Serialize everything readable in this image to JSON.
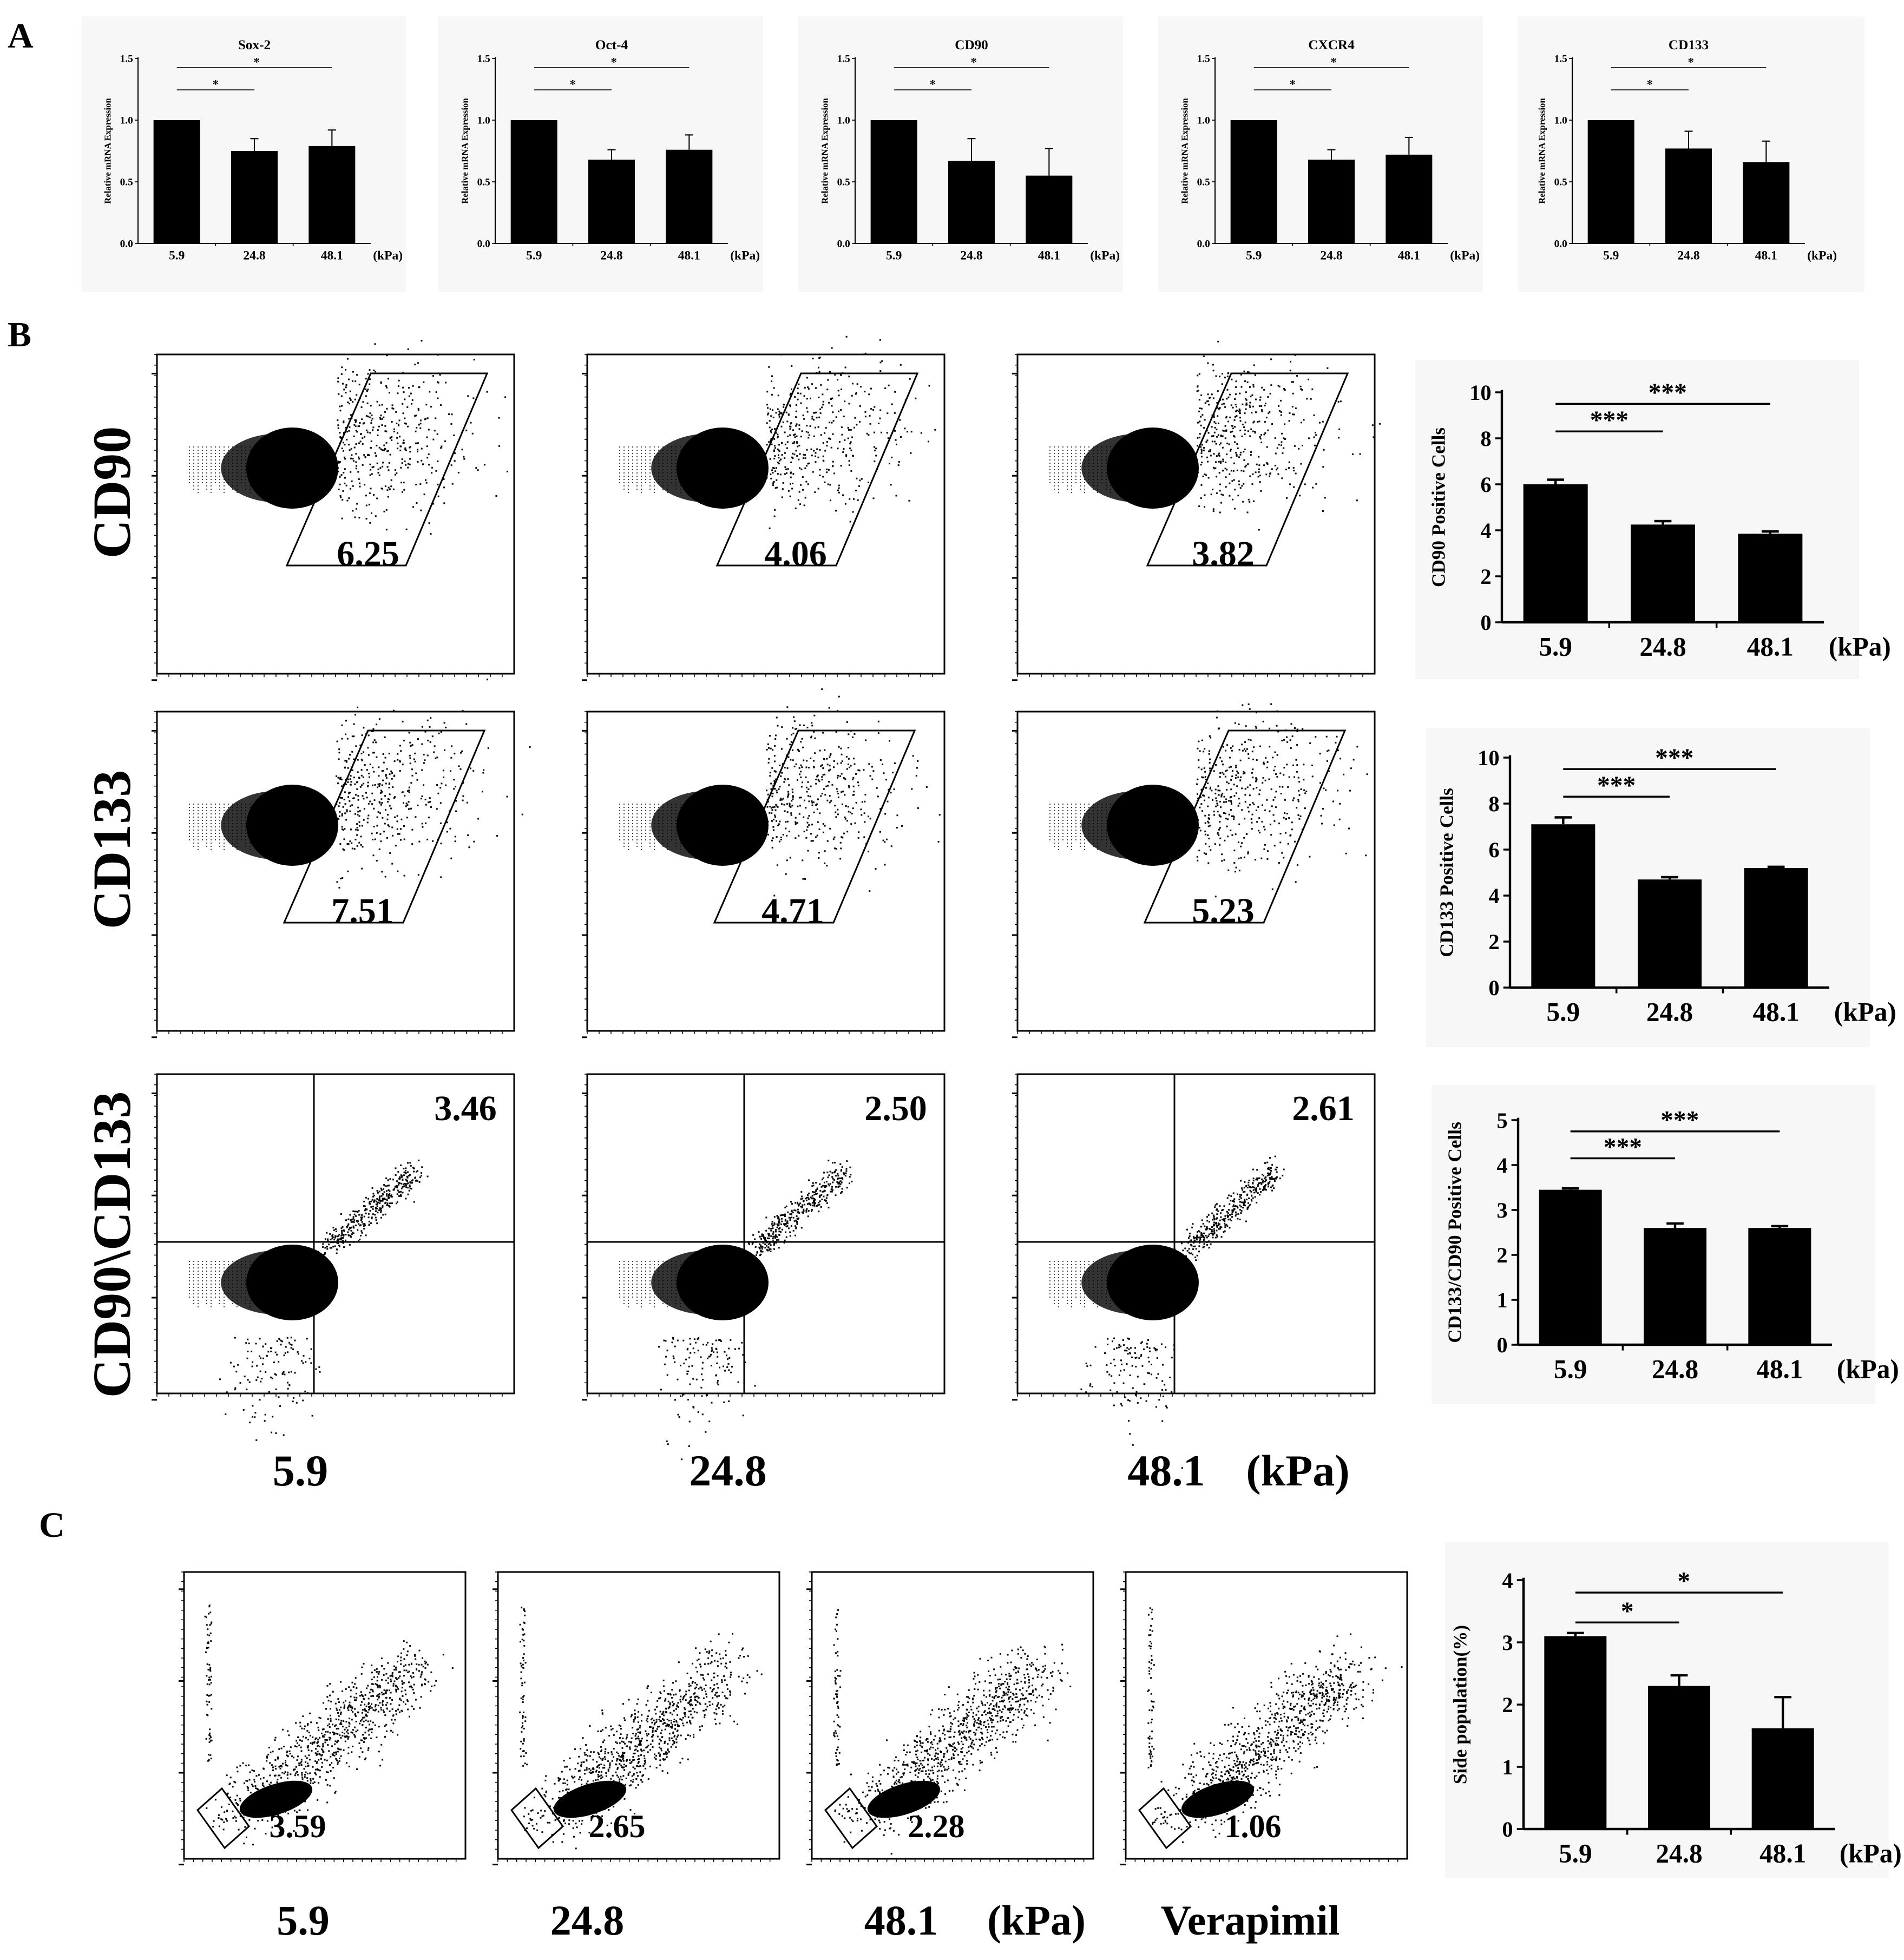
{
  "panels": {
    "a": {
      "letter": "A"
    },
    "b": {
      "letter": "B",
      "row_labels": [
        "CD90",
        "CD133",
        "CD90\\CD133"
      ],
      "column_labels": [
        "5.9",
        "24.8",
        "48.1"
      ],
      "unit": "(kPa)",
      "gate_values": [
        [
          "6.25",
          "4.06",
          "3.82"
        ],
        [
          "7.51",
          "4.71",
          "5.23"
        ],
        [
          "3.46",
          "2.50",
          "2.61"
        ]
      ]
    },
    "c": {
      "letter": "C",
      "column_labels": [
        "5.9",
        "24.8",
        "48.1",
        "Verapimil"
      ],
      "unit": "(kPa)",
      "gate_values": [
        "3.59",
        "2.65",
        "2.28",
        "1.06"
      ]
    }
  },
  "chart_data": [
    {
      "id": "a-sox2",
      "type": "bar",
      "title": "Sox-2",
      "ylabel": "Relative mRNA Expression",
      "categories": [
        "5.9",
        "24.8",
        "48.1"
      ],
      "unit": "(kPa)",
      "values": [
        1.0,
        0.75,
        0.79
      ],
      "errors": [
        0,
        0.1,
        0.13
      ],
      "ylim": [
        0,
        1.5
      ],
      "ticks": [
        "0.0",
        "0.5",
        "1.0",
        "1.5"
      ],
      "sig": [
        {
          "label": "*",
          "to": 1
        },
        {
          "label": "*",
          "to": 2
        }
      ]
    },
    {
      "id": "a-oct4",
      "type": "bar",
      "title": "Oct-4",
      "ylabel": "Relative mRNA Expression",
      "categories": [
        "5.9",
        "24.8",
        "48.1"
      ],
      "unit": "(kPa)",
      "values": [
        1.0,
        0.68,
        0.76
      ],
      "errors": [
        0,
        0.08,
        0.12
      ],
      "ylim": [
        0,
        1.5
      ],
      "ticks": [
        "0.0",
        "0.5",
        "1.0",
        "1.5"
      ],
      "sig": [
        {
          "label": "*",
          "to": 1
        },
        {
          "label": "*",
          "to": 2
        }
      ]
    },
    {
      "id": "a-cd90",
      "type": "bar",
      "title": "CD90",
      "ylabel": "Relative mRNA Expression",
      "categories": [
        "5.9",
        "24.8",
        "48.1"
      ],
      "unit": "(kPa)",
      "values": [
        1.0,
        0.67,
        0.55
      ],
      "errors": [
        0,
        0.18,
        0.22
      ],
      "ylim": [
        0,
        1.5
      ],
      "ticks": [
        "0.0",
        "0.5",
        "1.0",
        "1.5"
      ],
      "sig": [
        {
          "label": "*",
          "to": 1
        },
        {
          "label": "*",
          "to": 2
        }
      ]
    },
    {
      "id": "a-cxcr4",
      "type": "bar",
      "title": "CXCR4",
      "ylabel": "Relative mRNA Expression",
      "categories": [
        "5.9",
        "24.8",
        "48.1"
      ],
      "unit": "(kPa)",
      "values": [
        1.0,
        0.68,
        0.72
      ],
      "errors": [
        0,
        0.08,
        0.14
      ],
      "ylim": [
        0,
        1.5
      ],
      "ticks": [
        "0.0",
        "0.5",
        "1.0",
        "1.5"
      ],
      "sig": [
        {
          "label": "*",
          "to": 1
        },
        {
          "label": "*",
          "to": 2
        }
      ]
    },
    {
      "id": "a-cd133",
      "type": "bar",
      "title": "CD133",
      "ylabel": "Relative mRNA Expression",
      "categories": [
        "5.9",
        "24.8",
        "48.1"
      ],
      "unit": "(kPa)",
      "values": [
        1.0,
        0.77,
        0.66
      ],
      "errors": [
        0,
        0.14,
        0.17
      ],
      "ylim": [
        0,
        1.5
      ],
      "ticks": [
        "0.0",
        "0.5",
        "1.0",
        "1.5"
      ],
      "sig": [
        {
          "label": "*",
          "to": 1
        },
        {
          "label": "*",
          "to": 2
        }
      ]
    },
    {
      "id": "b-cd90",
      "type": "bar",
      "title": "",
      "ylabel": "CD90 Positive Cells",
      "categories": [
        "5.9",
        "24.8",
        "48.1"
      ],
      "unit": "(kPa)",
      "values": [
        6.0,
        4.25,
        3.85
      ],
      "errors": [
        0.2,
        0.15,
        0.1
      ],
      "ylim": [
        0,
        10
      ],
      "ticks": [
        "0",
        "2",
        "4",
        "6",
        "8",
        "10"
      ],
      "sig": [
        {
          "label": "***",
          "to": 1
        },
        {
          "label": "***",
          "to": 2
        }
      ]
    },
    {
      "id": "b-cd133",
      "type": "bar",
      "title": "",
      "ylabel": "CD133 Positive Cells",
      "categories": [
        "5.9",
        "24.8",
        "48.1"
      ],
      "unit": "(kPa)",
      "values": [
        7.1,
        4.7,
        5.2
      ],
      "errors": [
        0.3,
        0.1,
        0.05
      ],
      "ylim": [
        0,
        10
      ],
      "ticks": [
        "0",
        "2",
        "4",
        "6",
        "8",
        "10"
      ],
      "sig": [
        {
          "label": "***",
          "to": 1
        },
        {
          "label": "***",
          "to": 2
        }
      ]
    },
    {
      "id": "b-double",
      "type": "bar",
      "title": "",
      "ylabel": "CD133/CD90 Positive Cells",
      "categories": [
        "5.9",
        "24.8",
        "48.1"
      ],
      "unit": "(kPa)",
      "values": [
        3.45,
        2.6,
        2.6
      ],
      "errors": [
        0.03,
        0.1,
        0.04
      ],
      "ylim": [
        0,
        5
      ],
      "ticks": [
        "0",
        "1",
        "2",
        "3",
        "4",
        "5"
      ],
      "sig": [
        {
          "label": "***",
          "to": 1
        },
        {
          "label": "***",
          "to": 2
        }
      ]
    },
    {
      "id": "c-sp",
      "type": "bar",
      "title": "",
      "ylabel": "Side population(%)",
      "categories": [
        "5.9",
        "24.8",
        "48.1"
      ],
      "unit": "(kPa)",
      "values": [
        3.1,
        2.3,
        1.62
      ],
      "errors": [
        0.05,
        0.17,
        0.5
      ],
      "ylim": [
        0,
        4
      ],
      "ticks": [
        "0",
        "1",
        "2",
        "3",
        "4"
      ],
      "sig": [
        {
          "label": "*",
          "to": 1
        },
        {
          "label": "*",
          "to": 2
        }
      ]
    }
  ]
}
